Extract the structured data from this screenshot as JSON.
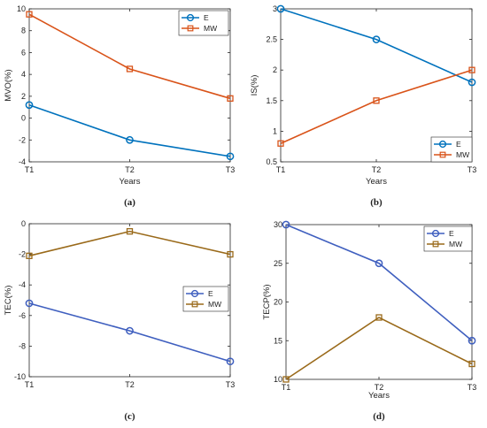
{
  "chart_data": [
    {
      "id": "a",
      "type": "line",
      "panel_label": "(a)",
      "xlabel": "Years",
      "ylabel": "MVO(%)",
      "categories": [
        "T1",
        "T2",
        "T3"
      ],
      "ylim": [
        -4,
        10
      ],
      "yticks": [
        -4,
        -2,
        0,
        2,
        4,
        6,
        8,
        10
      ],
      "series": [
        {
          "name": "E",
          "marker": "circle",
          "color": "#0072bd",
          "values": [
            1.2,
            -2,
            -3.5
          ]
        },
        {
          "name": "MW",
          "marker": "square",
          "color": "#d95319",
          "values": [
            9.5,
            4.5,
            1.8
          ]
        }
      ],
      "legend_position": "top-right",
      "grid": false
    },
    {
      "id": "b",
      "type": "line",
      "panel_label": "(b)",
      "xlabel": "Years",
      "ylabel": "IS(%)",
      "categories": [
        "T1",
        "T2",
        "T3"
      ],
      "ylim": [
        0.5,
        3
      ],
      "yticks": [
        0.5,
        1,
        1.5,
        2,
        2.5,
        3
      ],
      "series": [
        {
          "name": "E",
          "marker": "circle",
          "color": "#0072bd",
          "values": [
            3,
            2.5,
            1.8
          ]
        },
        {
          "name": "MW",
          "marker": "square",
          "color": "#d95319",
          "values": [
            0.8,
            1.5,
            2
          ]
        }
      ],
      "legend_position": "bottom-right",
      "grid": false
    },
    {
      "id": "c",
      "type": "line",
      "panel_label": "(c)",
      "xlabel": "",
      "ylabel": "TEC(%)",
      "categories": [
        "T1",
        "T2",
        "T3"
      ],
      "ylim": [
        -10,
        0
      ],
      "yticks": [
        -10,
        -8,
        -6,
        -4,
        -2,
        0
      ],
      "series": [
        {
          "name": "E",
          "marker": "circle",
          "color": "#3f5fbf",
          "values": [
            -5.2,
            -7,
            -9
          ]
        },
        {
          "name": "MW",
          "marker": "square",
          "color": "#9a6a1a",
          "values": [
            -2.1,
            -0.5,
            -2
          ]
        }
      ],
      "legend_position": "right",
      "grid": false
    },
    {
      "id": "d",
      "type": "line",
      "panel_label": "(d)",
      "xlabel": "Years",
      "ylabel": "TECP(%)",
      "categories": [
        "T1",
        "T2",
        "T3"
      ],
      "ylim": [
        10,
        30
      ],
      "yticks": [
        10,
        15,
        20,
        25,
        30
      ],
      "series": [
        {
          "name": "E",
          "marker": "circle",
          "color": "#3f5fbf",
          "values": [
            30,
            25,
            15
          ]
        },
        {
          "name": "MW",
          "marker": "square",
          "color": "#9a6a1a",
          "values": [
            10,
            18,
            12
          ]
        }
      ],
      "legend_position": "top-right",
      "grid": false
    }
  ]
}
